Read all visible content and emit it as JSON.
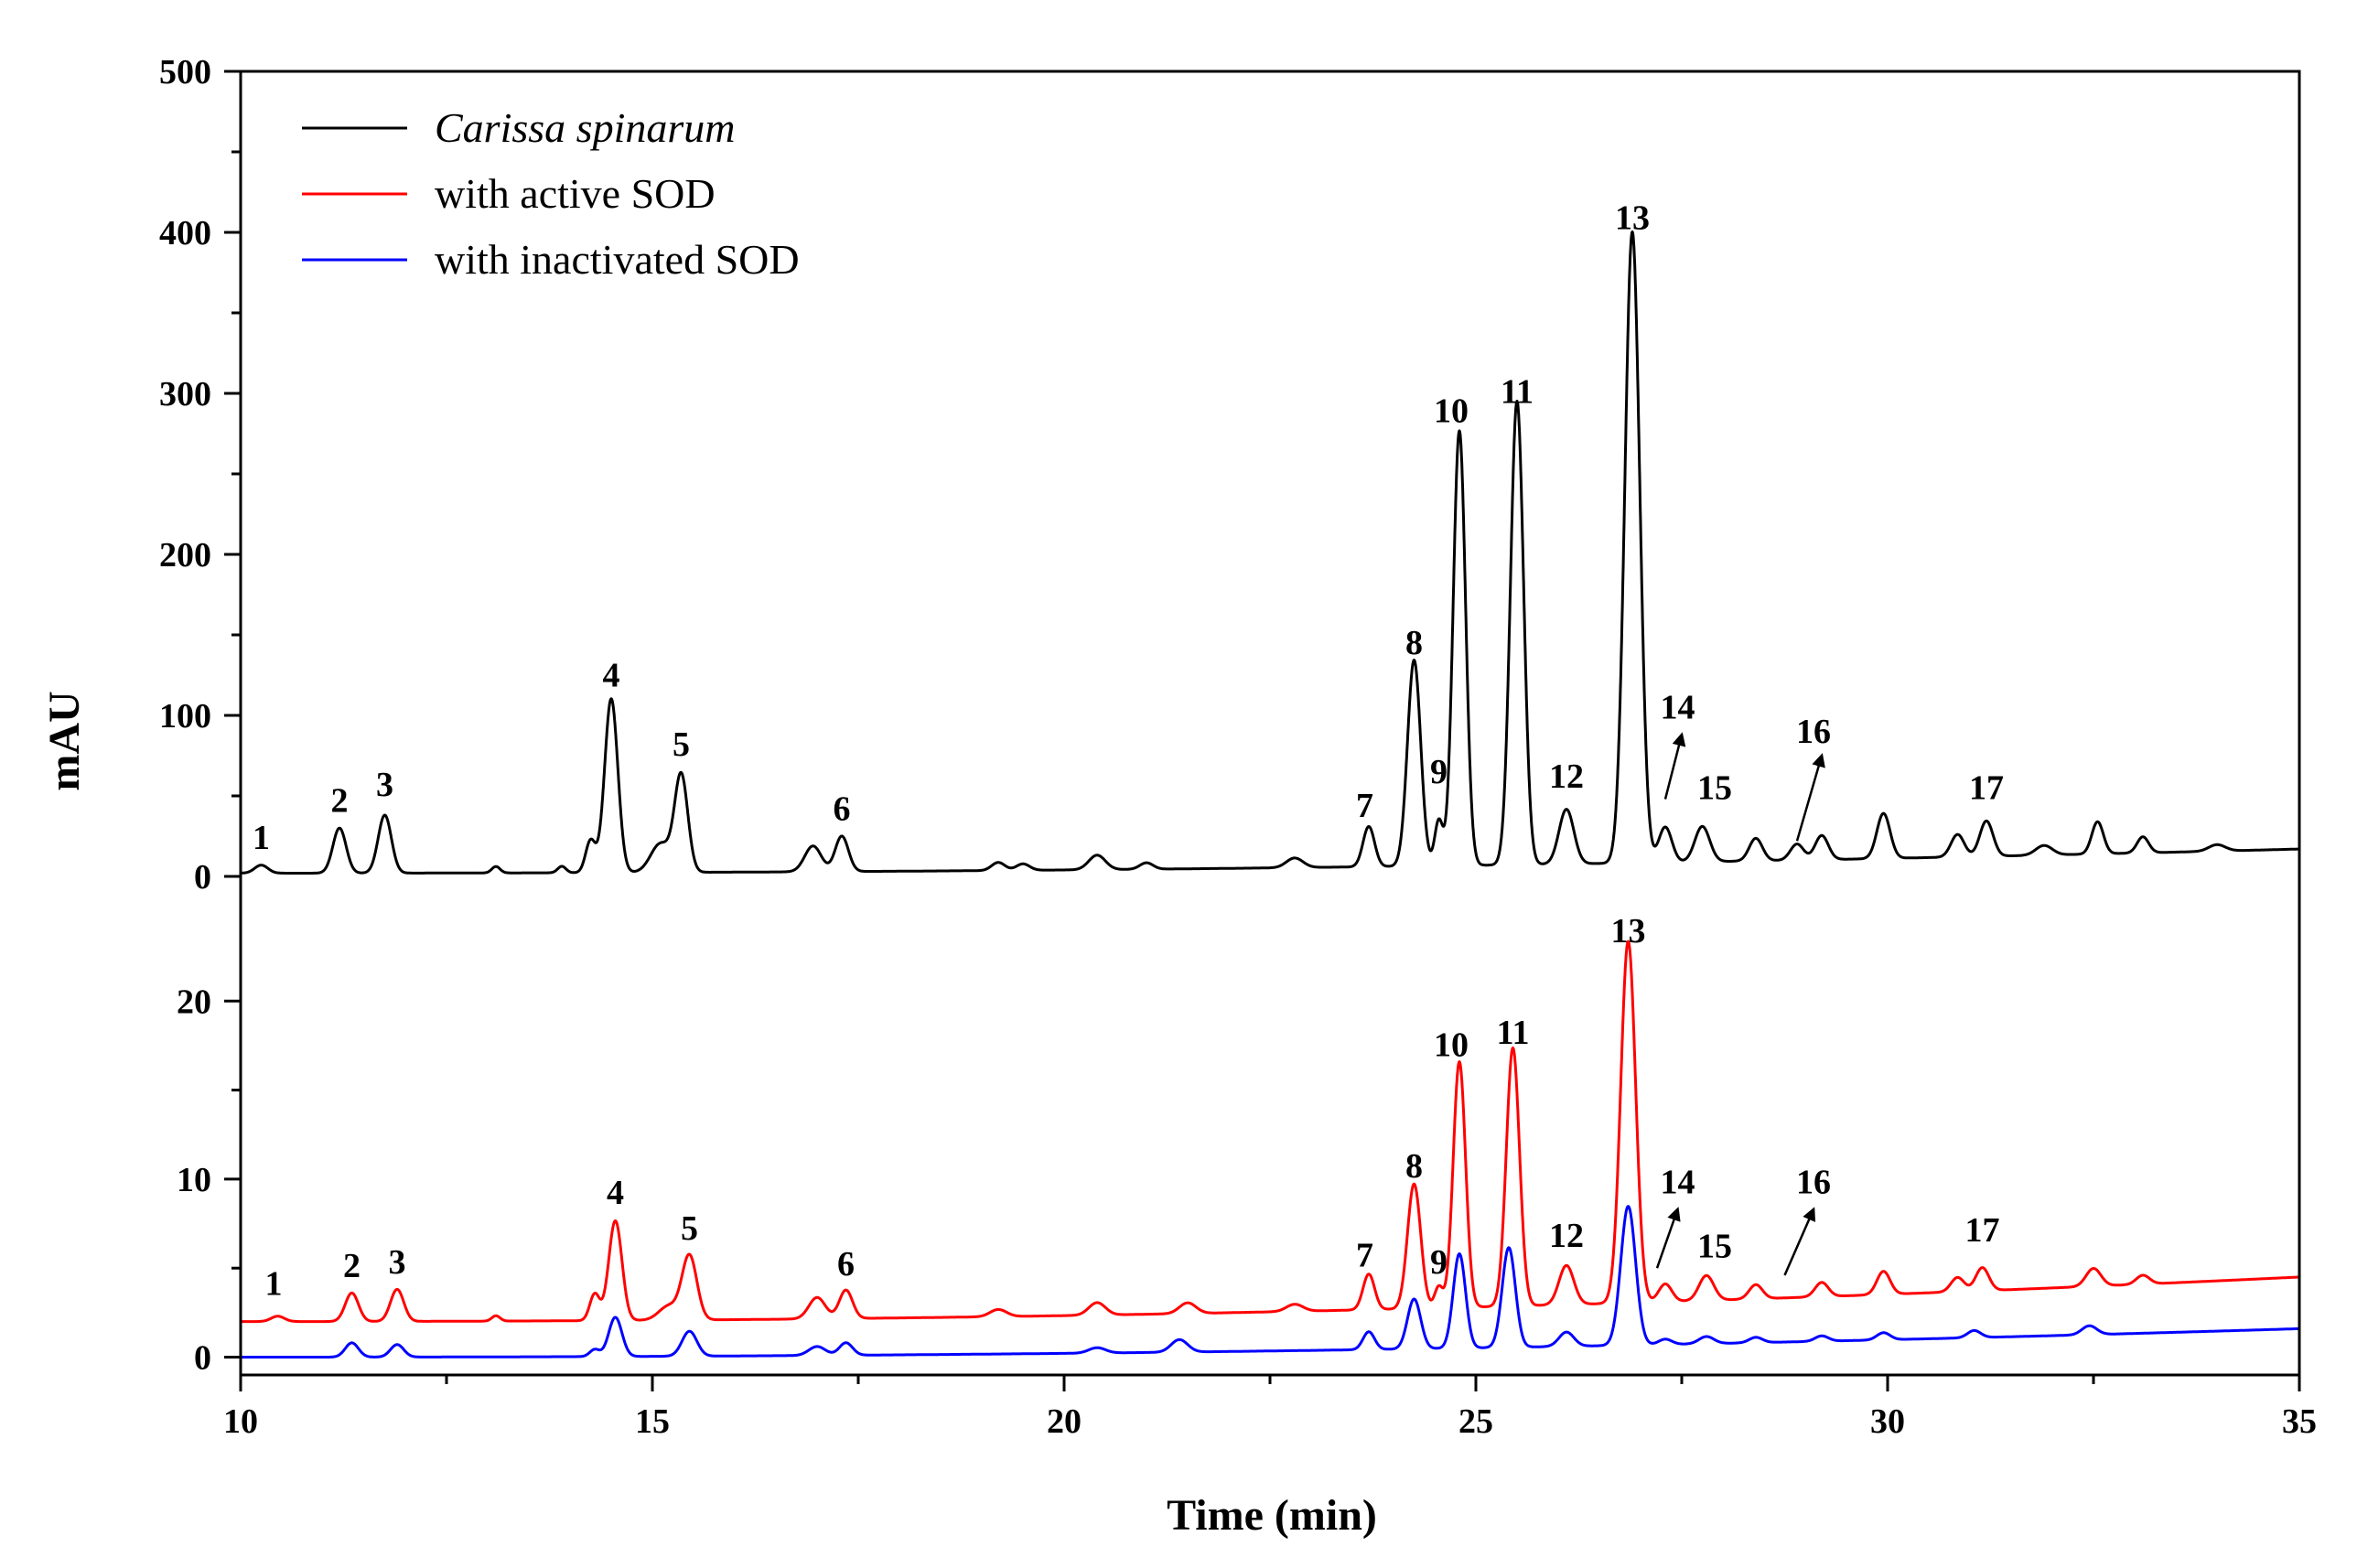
{
  "chart_data": {
    "type": "line",
    "xlabel": "Time (min)",
    "ylabel": "mAU",
    "xlim": [
      10,
      35
    ],
    "x_ticks": [
      10,
      15,
      20,
      25,
      30,
      35
    ],
    "panels": [
      {
        "name": "top",
        "ylim": [
          0,
          500
        ],
        "y_ticks": [
          0,
          100,
          200,
          300,
          400,
          500
        ],
        "series": [
          {
            "name": "Carissa spinarum",
            "color": "#000000",
            "baseline": 2,
            "baseline_end": 17,
            "peaks": [
              [
                10.25,
                5,
                0.08
              ],
              [
                11.2,
                28,
                0.08
              ],
              [
                11.75,
                36,
                0.08
              ],
              [
                13.1,
                4,
                0.05
              ],
              [
                13.9,
                4,
                0.05
              ],
              [
                14.25,
                20,
                0.06
              ],
              [
                14.5,
                108,
                0.08
              ],
              [
                15.1,
                18,
                0.12
              ],
              [
                15.35,
                60,
                0.08
              ],
              [
                16.95,
                16,
                0.1
              ],
              [
                17.3,
                22,
                0.08
              ],
              [
                19.2,
                5,
                0.08
              ],
              [
                19.5,
                4,
                0.08
              ],
              [
                20.4,
                9,
                0.1
              ],
              [
                21.0,
                4,
                0.08
              ],
              [
                22.8,
                6,
                0.1
              ],
              [
                23.7,
                25,
                0.07
              ],
              [
                24.25,
                128,
                0.08
              ],
              [
                24.55,
                28,
                0.05
              ],
              [
                24.8,
                270,
                0.075
              ],
              [
                25.5,
                288,
                0.08
              ],
              [
                26.1,
                34,
                0.09
              ],
              [
                26.9,
                392,
                0.09
              ],
              [
                27.3,
                22,
                0.08
              ],
              [
                27.75,
                22,
                0.09
              ],
              [
                28.4,
                14,
                0.08
              ],
              [
                28.9,
                10,
                0.08
              ],
              [
                29.2,
                15,
                0.08
              ],
              [
                29.95,
                28,
                0.08
              ],
              [
                30.85,
                14,
                0.08
              ],
              [
                31.2,
                22,
                0.08
              ],
              [
                31.9,
                6,
                0.1
              ],
              [
                32.55,
                20,
                0.07
              ],
              [
                33.1,
                10,
                0.07
              ],
              [
                34.0,
                4,
                0.1
              ]
            ]
          }
        ],
        "peak_labels": [
          {
            "text": "1",
            "x": 10.25,
            "y": 17
          },
          {
            "text": "2",
            "x": 11.2,
            "y": 40
          },
          {
            "text": "3",
            "x": 11.75,
            "y": 50
          },
          {
            "text": "4",
            "x": 14.5,
            "y": 118
          },
          {
            "text": "5",
            "x": 15.35,
            "y": 75
          },
          {
            "text": "6",
            "x": 17.3,
            "y": 35
          },
          {
            "text": "7",
            "x": 23.65,
            "y": 37
          },
          {
            "text": "8",
            "x": 24.25,
            "y": 138
          },
          {
            "text": "9",
            "x": 24.55,
            "y": 58
          },
          {
            "text": "10",
            "x": 24.7,
            "y": 282
          },
          {
            "text": "11",
            "x": 25.5,
            "y": 294
          },
          {
            "text": "12",
            "x": 26.1,
            "y": 55
          },
          {
            "text": "13",
            "x": 26.9,
            "y": 402
          },
          {
            "text": "14",
            "x": 27.45,
            "y": 98
          },
          {
            "text": "15",
            "x": 27.9,
            "y": 48
          },
          {
            "text": "16",
            "x": 29.1,
            "y": 83
          },
          {
            "text": "17",
            "x": 31.2,
            "y": 48
          }
        ],
        "arrows": [
          {
            "from": [
              27.3,
              48
            ],
            "to": [
              27.5,
              88
            ]
          },
          {
            "from": [
              28.9,
              22
            ],
            "to": [
              29.2,
              75
            ]
          }
        ]
      },
      {
        "name": "bottom",
        "ylim": [
          -1,
          27
        ],
        "y_ticks": [
          0,
          10,
          20
        ],
        "series": [
          {
            "name": "with active SOD",
            "color": "#ff0000",
            "baseline": 2.0,
            "baseline_end": 4.5,
            "peaks": [
              [
                10.45,
                0.3,
                0.08
              ],
              [
                11.35,
                1.6,
                0.08
              ],
              [
                11.9,
                1.8,
                0.08
              ],
              [
                13.1,
                0.3,
                0.05
              ],
              [
                14.3,
                1.5,
                0.06
              ],
              [
                14.55,
                5.6,
                0.08
              ],
              [
                15.2,
                0.8,
                0.12
              ],
              [
                15.45,
                3.6,
                0.09
              ],
              [
                17.0,
                1.2,
                0.1
              ],
              [
                17.35,
                1.6,
                0.08
              ],
              [
                19.2,
                0.4,
                0.1
              ],
              [
                20.4,
                0.7,
                0.1
              ],
              [
                21.5,
                0.6,
                0.1
              ],
              [
                22.8,
                0.4,
                0.1
              ],
              [
                23.7,
                2.0,
                0.07
              ],
              [
                24.25,
                7.0,
                0.08
              ],
              [
                24.55,
                1.2,
                0.05
              ],
              [
                24.8,
                13.8,
                0.075
              ],
              [
                25.45,
                14.5,
                0.08
              ],
              [
                26.1,
                2.2,
                0.09
              ],
              [
                26.85,
                20.3,
                0.09
              ],
              [
                27.3,
                1.0,
                0.08
              ],
              [
                27.8,
                1.4,
                0.09
              ],
              [
                28.4,
                0.8,
                0.08
              ],
              [
                29.2,
                0.8,
                0.08
              ],
              [
                29.95,
                1.3,
                0.08
              ],
              [
                30.85,
                0.8,
                0.08
              ],
              [
                31.15,
                1.3,
                0.08
              ],
              [
                32.5,
                1.0,
                0.09
              ],
              [
                33.1,
                0.5,
                0.08
              ]
            ]
          },
          {
            "name": "with inactivated SOD",
            "color": "#0000ff",
            "baseline": 0.0,
            "baseline_end": 1.6,
            "peaks": [
              [
                11.35,
                0.8,
                0.08
              ],
              [
                11.9,
                0.7,
                0.08
              ],
              [
                14.3,
                0.4,
                0.06
              ],
              [
                14.55,
                2.2,
                0.08
              ],
              [
                15.45,
                1.4,
                0.09
              ],
              [
                17.0,
                0.5,
                0.1
              ],
              [
                17.35,
                0.7,
                0.08
              ],
              [
                20.4,
                0.3,
                0.1
              ],
              [
                21.4,
                0.7,
                0.1
              ],
              [
                23.7,
                1.0,
                0.07
              ],
              [
                24.25,
                2.8,
                0.08
              ],
              [
                24.8,
                5.3,
                0.075
              ],
              [
                25.4,
                5.6,
                0.08
              ],
              [
                26.1,
                0.8,
                0.09
              ],
              [
                26.85,
                7.8,
                0.09
              ],
              [
                27.3,
                0.3,
                0.08
              ],
              [
                27.8,
                0.4,
                0.09
              ],
              [
                28.4,
                0.3,
                0.08
              ],
              [
                29.2,
                0.3,
                0.08
              ],
              [
                29.95,
                0.4,
                0.08
              ],
              [
                31.05,
                0.4,
                0.08
              ],
              [
                32.45,
                0.5,
                0.09
              ]
            ]
          }
        ],
        "peak_labels": [
          {
            "text": "1",
            "x": 10.4,
            "y": 3.5
          },
          {
            "text": "2",
            "x": 11.35,
            "y": 4.5
          },
          {
            "text": "3",
            "x": 11.9,
            "y": 4.7
          },
          {
            "text": "4",
            "x": 14.55,
            "y": 8.6
          },
          {
            "text": "5",
            "x": 15.45,
            "y": 6.6
          },
          {
            "text": "6",
            "x": 17.35,
            "y": 4.6
          },
          {
            "text": "7",
            "x": 23.65,
            "y": 5.1
          },
          {
            "text": "8",
            "x": 24.25,
            "y": 10.1
          },
          {
            "text": "9",
            "x": 24.55,
            "y": 4.7
          },
          {
            "text": "10",
            "x": 24.7,
            "y": 16.9
          },
          {
            "text": "11",
            "x": 25.45,
            "y": 17.6
          },
          {
            "text": "12",
            "x": 26.1,
            "y": 6.2
          },
          {
            "text": "13",
            "x": 26.85,
            "y": 23.3
          },
          {
            "text": "14",
            "x": 27.45,
            "y": 9.2
          },
          {
            "text": "15",
            "x": 27.9,
            "y": 5.6
          },
          {
            "text": "16",
            "x": 29.1,
            "y": 9.2
          },
          {
            "text": "17",
            "x": 31.15,
            "y": 6.5
          }
        ],
        "arrows": [
          {
            "from": [
              27.2,
              5.0
            ],
            "to": [
              27.45,
              8.3
            ]
          },
          {
            "from": [
              28.75,
              4.6
            ],
            "to": [
              29.1,
              8.3
            ]
          }
        ]
      }
    ],
    "legend": [
      {
        "label": "Carissa spinarum",
        "color": "#000000",
        "italic": true
      },
      {
        "label": "with active SOD",
        "color": "#ff0000",
        "italic": false
      },
      {
        "label": "with inactivated SOD",
        "color": "#0000ff",
        "italic": false
      }
    ],
    "legend_position": "top-left"
  }
}
